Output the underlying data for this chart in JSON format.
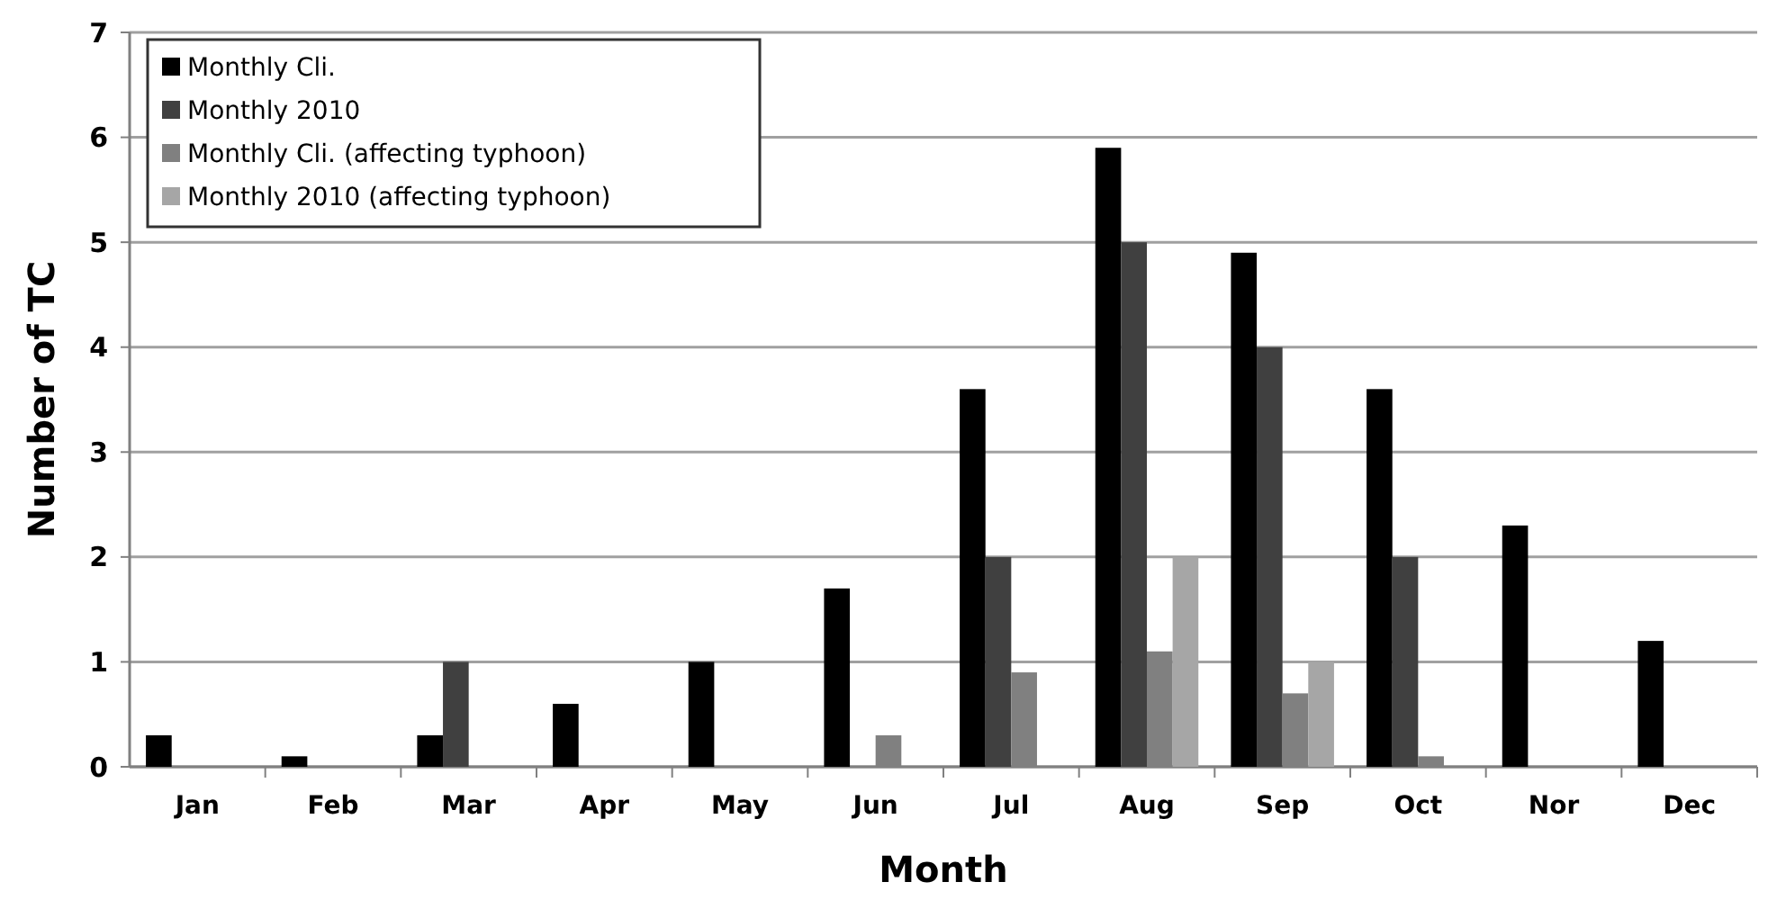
{
  "chart_data": {
    "type": "bar",
    "xlabel": "Month",
    "ylabel": "Number of TC",
    "categories": [
      "Jan",
      "Feb",
      "Mar",
      "Apr",
      "May",
      "Jun",
      "Jul",
      "Aug",
      "Sep",
      "Oct",
      "Nor",
      "Dec"
    ],
    "series": [
      {
        "name": "Monthly Cli.",
        "color": "#000000",
        "values": [
          0.3,
          0.1,
          0.3,
          0.6,
          1.0,
          1.7,
          3.6,
          5.9,
          4.9,
          3.6,
          2.3,
          1.2
        ]
      },
      {
        "name": "Monthly 2010",
        "color": "#404040",
        "values": [
          0,
          0,
          1,
          0,
          0,
          0,
          2,
          5,
          4,
          2,
          0,
          0
        ]
      },
      {
        "name": "Monthly Cli. (affecting typhoon)",
        "color": "#808080",
        "values": [
          0,
          0,
          0,
          0,
          0,
          0.3,
          0.9,
          1.1,
          0.7,
          0.1,
          0,
          0
        ]
      },
      {
        "name": "Monthly 2010 (affecting typhoon)",
        "color": "#a6a6a6",
        "values": [
          0,
          0,
          0,
          0,
          0,
          0,
          0,
          2,
          1,
          0,
          0,
          0
        ]
      }
    ],
    "ylim": [
      0,
      7
    ],
    "yticks": [
      0,
      1,
      2,
      3,
      4,
      5,
      6,
      7
    ],
    "grid": "y",
    "legend": "top left"
  }
}
